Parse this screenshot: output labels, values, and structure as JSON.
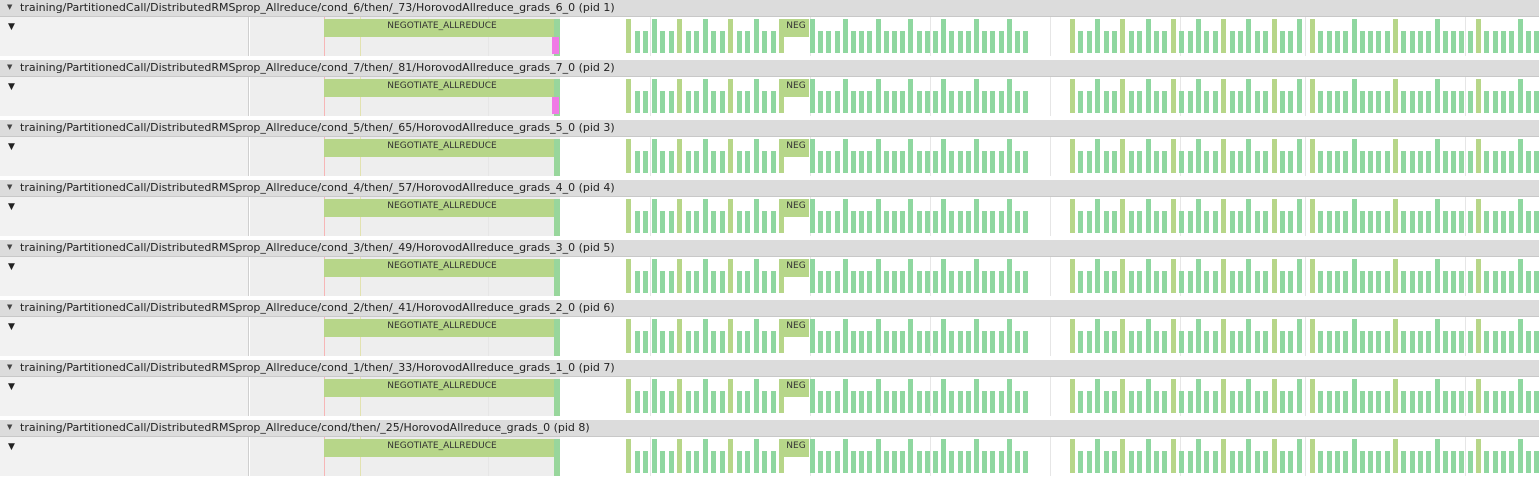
{
  "processes": [
    {
      "title": "training/PartitionedCall/DistributedRMSprop_Allreduce/cond_6/then/_73/HorovodAllreduce_grads_6_0 (pid 1)",
      "slice_label": "NEGOTIATE_ALLREDUCE",
      "short_label": "NEG",
      "pink": true
    },
    {
      "title": "training/PartitionedCall/DistributedRMSprop_Allreduce/cond_7/then/_81/HorovodAllreduce_grads_7_0 (pid 2)",
      "slice_label": "NEGOTIATE_ALLREDUCE",
      "short_label": "NEG",
      "pink": true
    },
    {
      "title": "training/PartitionedCall/DistributedRMSprop_Allreduce/cond_5/then/_65/HorovodAllreduce_grads_5_0 (pid 3)",
      "slice_label": "NEGOTIATE_ALLREDUCE",
      "short_label": "NEG",
      "pink": false
    },
    {
      "title": "training/PartitionedCall/DistributedRMSprop_Allreduce/cond_4/then/_57/HorovodAllreduce_grads_4_0 (pid 4)",
      "slice_label": "NEGOTIATE_ALLREDUCE",
      "short_label": "NEG",
      "pink": false
    },
    {
      "title": "training/PartitionedCall/DistributedRMSprop_Allreduce/cond_3/then/_49/HorovodAllreduce_grads_3_0 (pid 5)",
      "slice_label": "NEGOTIATE_ALLREDUCE",
      "short_label": "NEG",
      "pink": false
    },
    {
      "title": "training/PartitionedCall/DistributedRMSprop_Allreduce/cond_2/then/_41/HorovodAllreduce_grads_2_0 (pid 6)",
      "slice_label": "NEGOTIATE_ALLREDUCE",
      "short_label": "NEG",
      "pink": false
    },
    {
      "title": "training/PartitionedCall/DistributedRMSprop_Allreduce/cond_1/then/_33/HorovodAllreduce_grads_1_0 (pid 7)",
      "slice_label": "NEGOTIATE_ALLREDUCE",
      "short_label": "NEG",
      "pink": false
    },
    {
      "title": "training/PartitionedCall/DistributedRMSprop_Allreduce/cond/then/_25/HorovodAllreduce_grads_0 (pid 8)",
      "slice_label": "NEGOTIATE_ALLREDUCE",
      "short_label": "NEG",
      "pink": false
    }
  ],
  "icons": {
    "collapse": "triangle-down-icon"
  },
  "colors": {
    "header_bg": "#dcdcdc",
    "slice_green": "#b7d689",
    "bar_green": "#8fd7a0",
    "pink": "#f07ae6"
  }
}
